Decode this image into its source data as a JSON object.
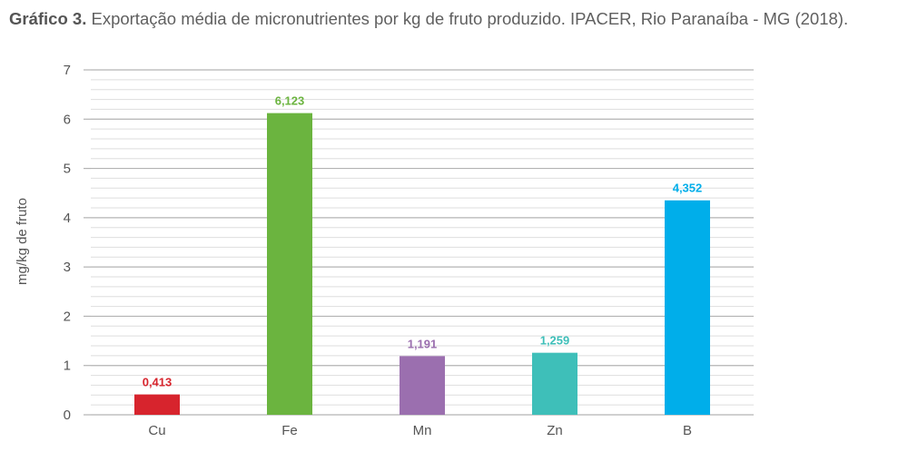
{
  "caption": {
    "lead": "Gráfico 3.",
    "text": "Exportação média de micronutrientes por kg de fruto produzido. IPACER, Rio Paranaíba - MG (2018)."
  },
  "chart_data": {
    "type": "bar",
    "categories": [
      "Cu",
      "Fe",
      "Mn",
      "Zn",
      "B"
    ],
    "values": [
      0.413,
      6.123,
      1.191,
      1.259,
      4.352
    ],
    "value_labels": [
      "0,413",
      "6,123",
      "1,191",
      "1,259",
      "4,352"
    ],
    "colors": [
      "#d7242d",
      "#6bb43f",
      "#9b6faf",
      "#3ebfb9",
      "#00aeea"
    ],
    "ylabel": "mg/kg de fruto",
    "xlabel": "",
    "ylim": [
      0,
      7
    ],
    "yticks": [
      "0",
      "1",
      "2",
      "3",
      "4",
      "5",
      "6",
      "7"
    ],
    "ytick_values": [
      0,
      1,
      2,
      3,
      4,
      5,
      6,
      7
    ],
    "minor_gridlines_per_unit": 5,
    "grid": true,
    "legend": "none"
  }
}
